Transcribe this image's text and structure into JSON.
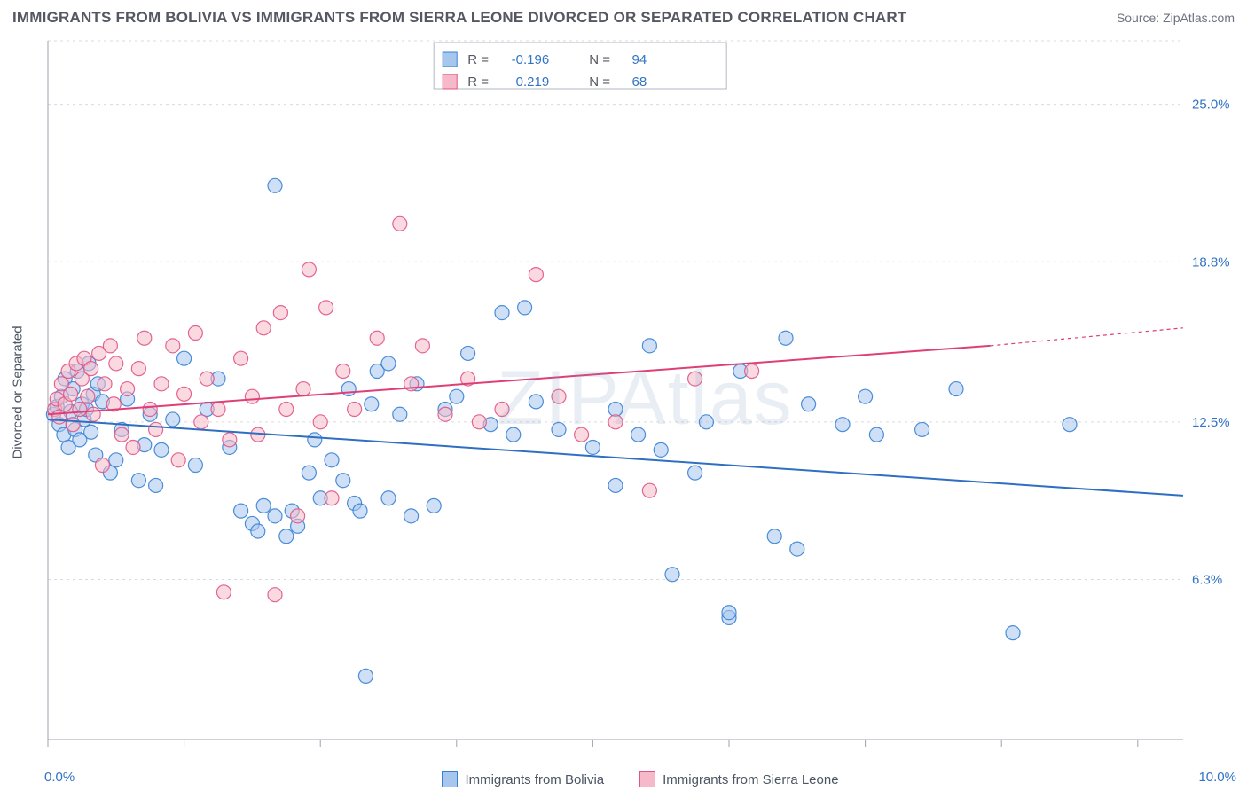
{
  "title": "IMMIGRANTS FROM BOLIVIA VS IMMIGRANTS FROM SIERRA LEONE DIVORCED OR SEPARATED CORRELATION CHART",
  "source": "Source: ZipAtlas.com",
  "ylabel": "Divorced or Separated",
  "watermark": "ZIPAtlas",
  "chart": {
    "type": "scatter",
    "xlim": [
      0.0,
      10.0
    ],
    "ylim": [
      0.0,
      27.5
    ],
    "xticks": [
      0.0,
      1.2,
      2.4,
      3.6,
      4.8,
      6.0,
      7.2,
      8.4,
      9.6
    ],
    "xticks_major": [
      0.0,
      10.0
    ],
    "yticks": [
      6.3,
      12.5,
      18.8,
      25.0
    ],
    "ytick_labels": [
      "6.3%",
      "12.5%",
      "18.8%",
      "25.0%"
    ],
    "x_start_label": "0.0%",
    "x_end_label": "10.0%",
    "grid_color": "#d7dbe0",
    "axis_color": "#9ca3af",
    "background": "#ffffff",
    "marker_radius": 8,
    "marker_opacity": 0.55,
    "line_width": 2,
    "y_tick_color": "#3273c4",
    "y_tick_fontsize": 15
  },
  "series": [
    {
      "name": "Immigrants from Bolivia",
      "fill": "#a7c6ee",
      "stroke": "#3782d5",
      "line_color": "#2f6fc1",
      "r_label": "R =",
      "r_value": "-0.196",
      "n_label": "N =",
      "n_value": "94",
      "trend": {
        "x1": 0.0,
        "y1": 12.6,
        "x2": 10.0,
        "y2": 9.6
      },
      "points": [
        [
          0.05,
          12.8
        ],
        [
          0.08,
          13.1
        ],
        [
          0.1,
          12.4
        ],
        [
          0.12,
          13.5
        ],
        [
          0.14,
          12.0
        ],
        [
          0.15,
          14.2
        ],
        [
          0.18,
          11.5
        ],
        [
          0.2,
          12.9
        ],
        [
          0.22,
          13.8
        ],
        [
          0.24,
          12.2
        ],
        [
          0.26,
          14.5
        ],
        [
          0.28,
          11.8
        ],
        [
          0.3,
          13.2
        ],
        [
          0.32,
          12.6
        ],
        [
          0.34,
          13.0
        ],
        [
          0.36,
          14.8
        ],
        [
          0.38,
          12.1
        ],
        [
          0.4,
          13.6
        ],
        [
          0.42,
          11.2
        ],
        [
          0.44,
          14.0
        ],
        [
          0.48,
          13.3
        ],
        [
          0.55,
          10.5
        ],
        [
          0.6,
          11.0
        ],
        [
          0.65,
          12.2
        ],
        [
          0.7,
          13.4
        ],
        [
          0.8,
          10.2
        ],
        [
          0.85,
          11.6
        ],
        [
          0.9,
          12.8
        ],
        [
          0.95,
          10.0
        ],
        [
          1.0,
          11.4
        ],
        [
          1.1,
          12.6
        ],
        [
          1.2,
          15.0
        ],
        [
          1.3,
          10.8
        ],
        [
          1.4,
          13.0
        ],
        [
          1.5,
          14.2
        ],
        [
          1.6,
          11.5
        ],
        [
          1.7,
          9.0
        ],
        [
          1.8,
          8.5
        ],
        [
          1.85,
          8.2
        ],
        [
          1.9,
          9.2
        ],
        [
          2.0,
          21.8
        ],
        [
          2.0,
          8.8
        ],
        [
          2.1,
          8.0
        ],
        [
          2.15,
          9.0
        ],
        [
          2.2,
          8.4
        ],
        [
          2.3,
          10.5
        ],
        [
          2.35,
          11.8
        ],
        [
          2.4,
          9.5
        ],
        [
          2.5,
          11.0
        ],
        [
          2.6,
          10.2
        ],
        [
          2.65,
          13.8
        ],
        [
          2.7,
          9.3
        ],
        [
          2.75,
          9.0
        ],
        [
          2.8,
          2.5
        ],
        [
          2.85,
          13.2
        ],
        [
          2.9,
          14.5
        ],
        [
          3.0,
          9.5
        ],
        [
          3.1,
          12.8
        ],
        [
          3.2,
          8.8
        ],
        [
          3.25,
          14.0
        ],
        [
          3.4,
          9.2
        ],
        [
          3.5,
          13.0
        ],
        [
          3.6,
          13.5
        ],
        [
          3.7,
          15.2
        ],
        [
          3.9,
          12.4
        ],
        [
          4.0,
          16.8
        ],
        [
          4.1,
          12.0
        ],
        [
          4.2,
          17.0
        ],
        [
          4.3,
          13.3
        ],
        [
          4.5,
          12.2
        ],
        [
          4.8,
          11.5
        ],
        [
          5.0,
          13.0
        ],
        [
          5.2,
          12.0
        ],
        [
          5.3,
          15.5
        ],
        [
          5.4,
          11.4
        ],
        [
          5.5,
          6.5
        ],
        [
          5.7,
          10.5
        ],
        [
          5.8,
          12.5
        ],
        [
          6.0,
          4.8
        ],
        [
          6.1,
          14.5
        ],
        [
          6.4,
          8.0
        ],
        [
          6.5,
          15.8
        ],
        [
          6.6,
          7.5
        ],
        [
          6.7,
          13.2
        ],
        [
          7.0,
          12.4
        ],
        [
          7.2,
          13.5
        ],
        [
          7.3,
          12.0
        ],
        [
          7.7,
          12.2
        ],
        [
          8.0,
          13.8
        ],
        [
          8.5,
          4.2
        ],
        [
          9.0,
          12.4
        ],
        [
          6.0,
          5.0
        ],
        [
          5.0,
          10.0
        ],
        [
          3.0,
          14.8
        ]
      ]
    },
    {
      "name": "Immigrants from Sierra Leone",
      "fill": "#f5b9c9",
      "stroke": "#e05586",
      "line_color": "#de3f77",
      "r_label": "R =",
      "r_value": "0.219",
      "n_label": "N =",
      "n_value": "68",
      "trend": {
        "x1": 0.0,
        "y1": 12.8,
        "x2": 8.3,
        "y2": 15.5
      },
      "trend_ext": {
        "x1": 8.3,
        "y1": 15.5,
        "x2": 10.0,
        "y2": 16.2
      },
      "points": [
        [
          0.06,
          13.0
        ],
        [
          0.08,
          13.4
        ],
        [
          0.1,
          12.7
        ],
        [
          0.12,
          14.0
        ],
        [
          0.15,
          13.2
        ],
        [
          0.18,
          14.5
        ],
        [
          0.2,
          13.6
        ],
        [
          0.22,
          12.4
        ],
        [
          0.25,
          14.8
        ],
        [
          0.28,
          13.0
        ],
        [
          0.3,
          14.2
        ],
        [
          0.32,
          15.0
        ],
        [
          0.35,
          13.5
        ],
        [
          0.38,
          14.6
        ],
        [
          0.4,
          12.8
        ],
        [
          0.45,
          15.2
        ],
        [
          0.48,
          10.8
        ],
        [
          0.5,
          14.0
        ],
        [
          0.55,
          15.5
        ],
        [
          0.58,
          13.2
        ],
        [
          0.6,
          14.8
        ],
        [
          0.65,
          12.0
        ],
        [
          0.7,
          13.8
        ],
        [
          0.75,
          11.5
        ],
        [
          0.8,
          14.6
        ],
        [
          0.85,
          15.8
        ],
        [
          0.9,
          13.0
        ],
        [
          0.95,
          12.2
        ],
        [
          1.0,
          14.0
        ],
        [
          1.1,
          15.5
        ],
        [
          1.15,
          11.0
        ],
        [
          1.2,
          13.6
        ],
        [
          1.3,
          16.0
        ],
        [
          1.35,
          12.5
        ],
        [
          1.4,
          14.2
        ],
        [
          1.5,
          13.0
        ],
        [
          1.55,
          5.8
        ],
        [
          1.6,
          11.8
        ],
        [
          1.7,
          15.0
        ],
        [
          1.8,
          13.5
        ],
        [
          1.85,
          12.0
        ],
        [
          1.9,
          16.2
        ],
        [
          2.0,
          5.7
        ],
        [
          2.05,
          16.8
        ],
        [
          2.1,
          13.0
        ],
        [
          2.2,
          8.8
        ],
        [
          2.25,
          13.8
        ],
        [
          2.3,
          18.5
        ],
        [
          2.4,
          12.5
        ],
        [
          2.45,
          17.0
        ],
        [
          2.5,
          9.5
        ],
        [
          2.6,
          14.5
        ],
        [
          2.7,
          13.0
        ],
        [
          2.9,
          15.8
        ],
        [
          3.1,
          20.3
        ],
        [
          3.2,
          14.0
        ],
        [
          3.3,
          15.5
        ],
        [
          3.5,
          12.8
        ],
        [
          3.7,
          14.2
        ],
        [
          3.8,
          12.5
        ],
        [
          4.0,
          13.0
        ],
        [
          4.3,
          18.3
        ],
        [
          4.5,
          13.5
        ],
        [
          4.7,
          12.0
        ],
        [
          5.0,
          12.5
        ],
        [
          5.3,
          9.8
        ],
        [
          5.7,
          14.2
        ],
        [
          6.2,
          14.5
        ]
      ]
    }
  ],
  "stat_legend": {
    "border": "#b0b8c0",
    "bg": "#ffffff",
    "label_color": "#555862",
    "value_color": "#3273c4"
  }
}
